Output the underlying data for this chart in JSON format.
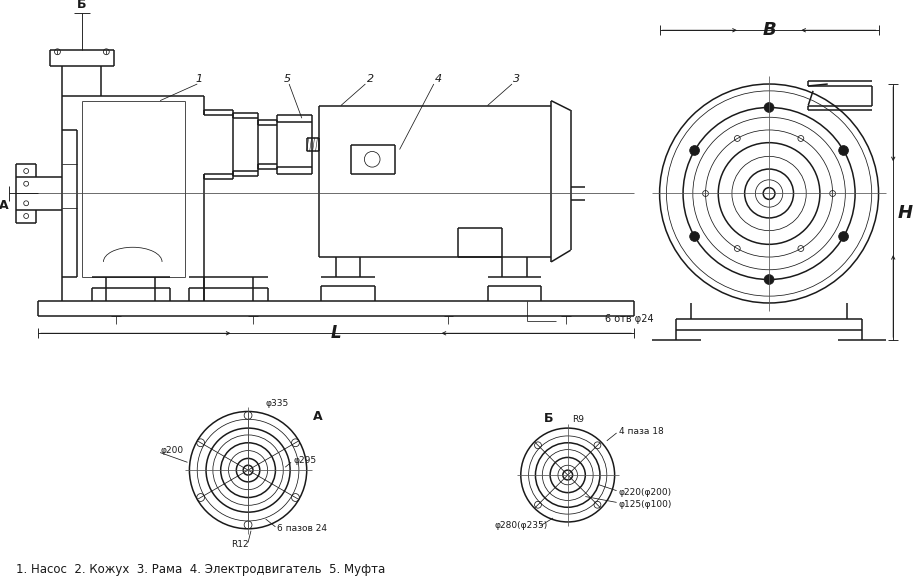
{
  "bg_color": "#ffffff",
  "line_color": "#1a1a1a",
  "text_color": "#1a1a1a",
  "footer_text": "1. Насос  2. Кожух  3. Рама  4. Электродвигатель  5. Муфта",
  "label_A": "A",
  "label_B_top": "Б",
  "label_A_section": "A",
  "label_B_section": "Б",
  "dim_L": "L",
  "dim_V": "В",
  "dim_H": "H",
  "annotation_6otv": "6 отв φ24",
  "ann_1": "1",
  "ann_2": "2",
  "ann_3": "3",
  "ann_4": "4",
  "ann_5": "5",
  "left_circ_labels": [
    "φ335",
    "A",
    "φ200",
    "φ295",
    "6 пазов 24",
    "R12"
  ],
  "right_circ_labels": [
    "Б",
    "R9",
    "4 паза 18",
    "φ220(φ200)",
    "φ125(φ100)",
    "φ280(φ235)"
  ]
}
